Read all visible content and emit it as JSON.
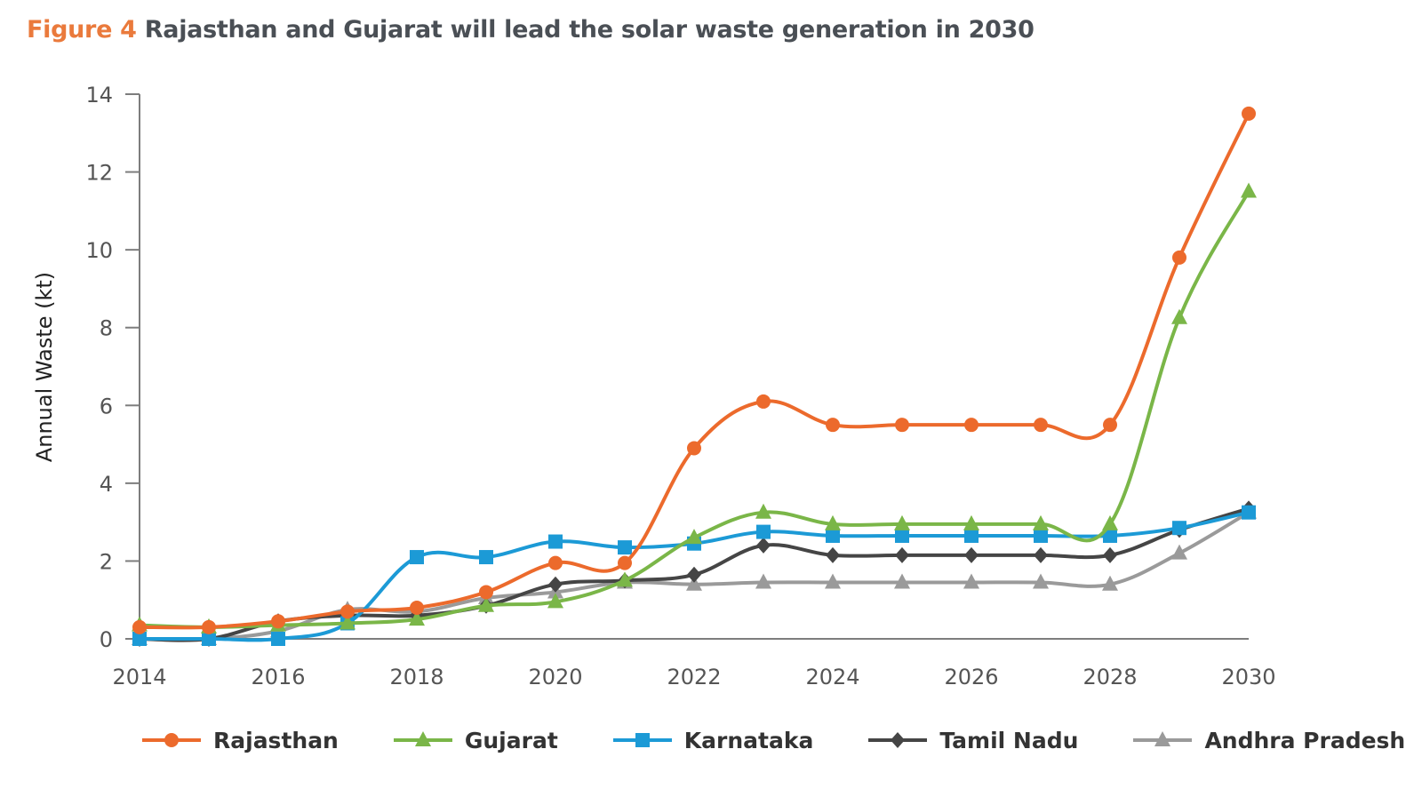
{
  "title": {
    "figure_label": "Figure 4",
    "text": "Rajasthan and Gujarat will lead the solar waste generation in 2030",
    "figure_color": "#ea7a3c"
  },
  "chart_data": {
    "type": "line",
    "title": "Figure 4 Rajasthan and Gujarat will lead the solar waste generation in 2030",
    "xlabel": "",
    "ylabel": "Annual Waste (kt)",
    "x": [
      2014,
      2015,
      2016,
      2017,
      2018,
      2019,
      2020,
      2021,
      2022,
      2023,
      2024,
      2025,
      2026,
      2027,
      2028,
      2029,
      2030
    ],
    "xticks": [
      "2014",
      "2016",
      "2018",
      "2020",
      "2022",
      "2024",
      "2026",
      "2028",
      "2030"
    ],
    "xlim": [
      2014,
      2030
    ],
    "yticks": [
      "0",
      "2",
      "4",
      "6",
      "8",
      "10",
      "12",
      "14"
    ],
    "ylim": [
      0,
      14
    ],
    "grid": false,
    "smooth": true,
    "legend_position": "bottom",
    "series": [
      {
        "name": "Rajasthan",
        "color": "#ec6a2c",
        "marker": "circle",
        "values": [
          0.3,
          0.3,
          0.45,
          0.7,
          0.8,
          1.2,
          1.95,
          1.95,
          4.9,
          6.1,
          5.5,
          5.5,
          5.5,
          5.5,
          5.5,
          9.8,
          13.5
        ]
      },
      {
        "name": "Gujarat",
        "color": "#7ab648",
        "marker": "triangle",
        "values": [
          0.35,
          0.3,
          0.35,
          0.4,
          0.5,
          0.85,
          0.95,
          1.5,
          2.6,
          3.25,
          2.95,
          2.95,
          2.95,
          2.95,
          2.95,
          8.25,
          11.5
        ]
      },
      {
        "name": "Karnataka",
        "color": "#1c9ad6",
        "marker": "square",
        "values": [
          0.0,
          0.0,
          0.0,
          0.4,
          2.1,
          2.1,
          2.5,
          2.35,
          2.45,
          2.75,
          2.65,
          2.65,
          2.65,
          2.65,
          2.65,
          2.85,
          3.25
        ]
      },
      {
        "name": "Tamil Nadu",
        "color": "#454545",
        "marker": "diamond",
        "values": [
          0.0,
          0.0,
          0.45,
          0.6,
          0.6,
          0.85,
          1.4,
          1.5,
          1.65,
          2.4,
          2.15,
          2.15,
          2.15,
          2.15,
          2.15,
          2.8,
          3.35
        ]
      },
      {
        "name": "Andhra Pradesh",
        "color": "#9a9a9a",
        "marker": "triangle",
        "values": [
          0.0,
          0.0,
          0.2,
          0.75,
          0.7,
          1.05,
          1.2,
          1.45,
          1.4,
          1.45,
          1.45,
          1.45,
          1.45,
          1.45,
          1.4,
          2.2,
          3.25
        ]
      }
    ]
  }
}
